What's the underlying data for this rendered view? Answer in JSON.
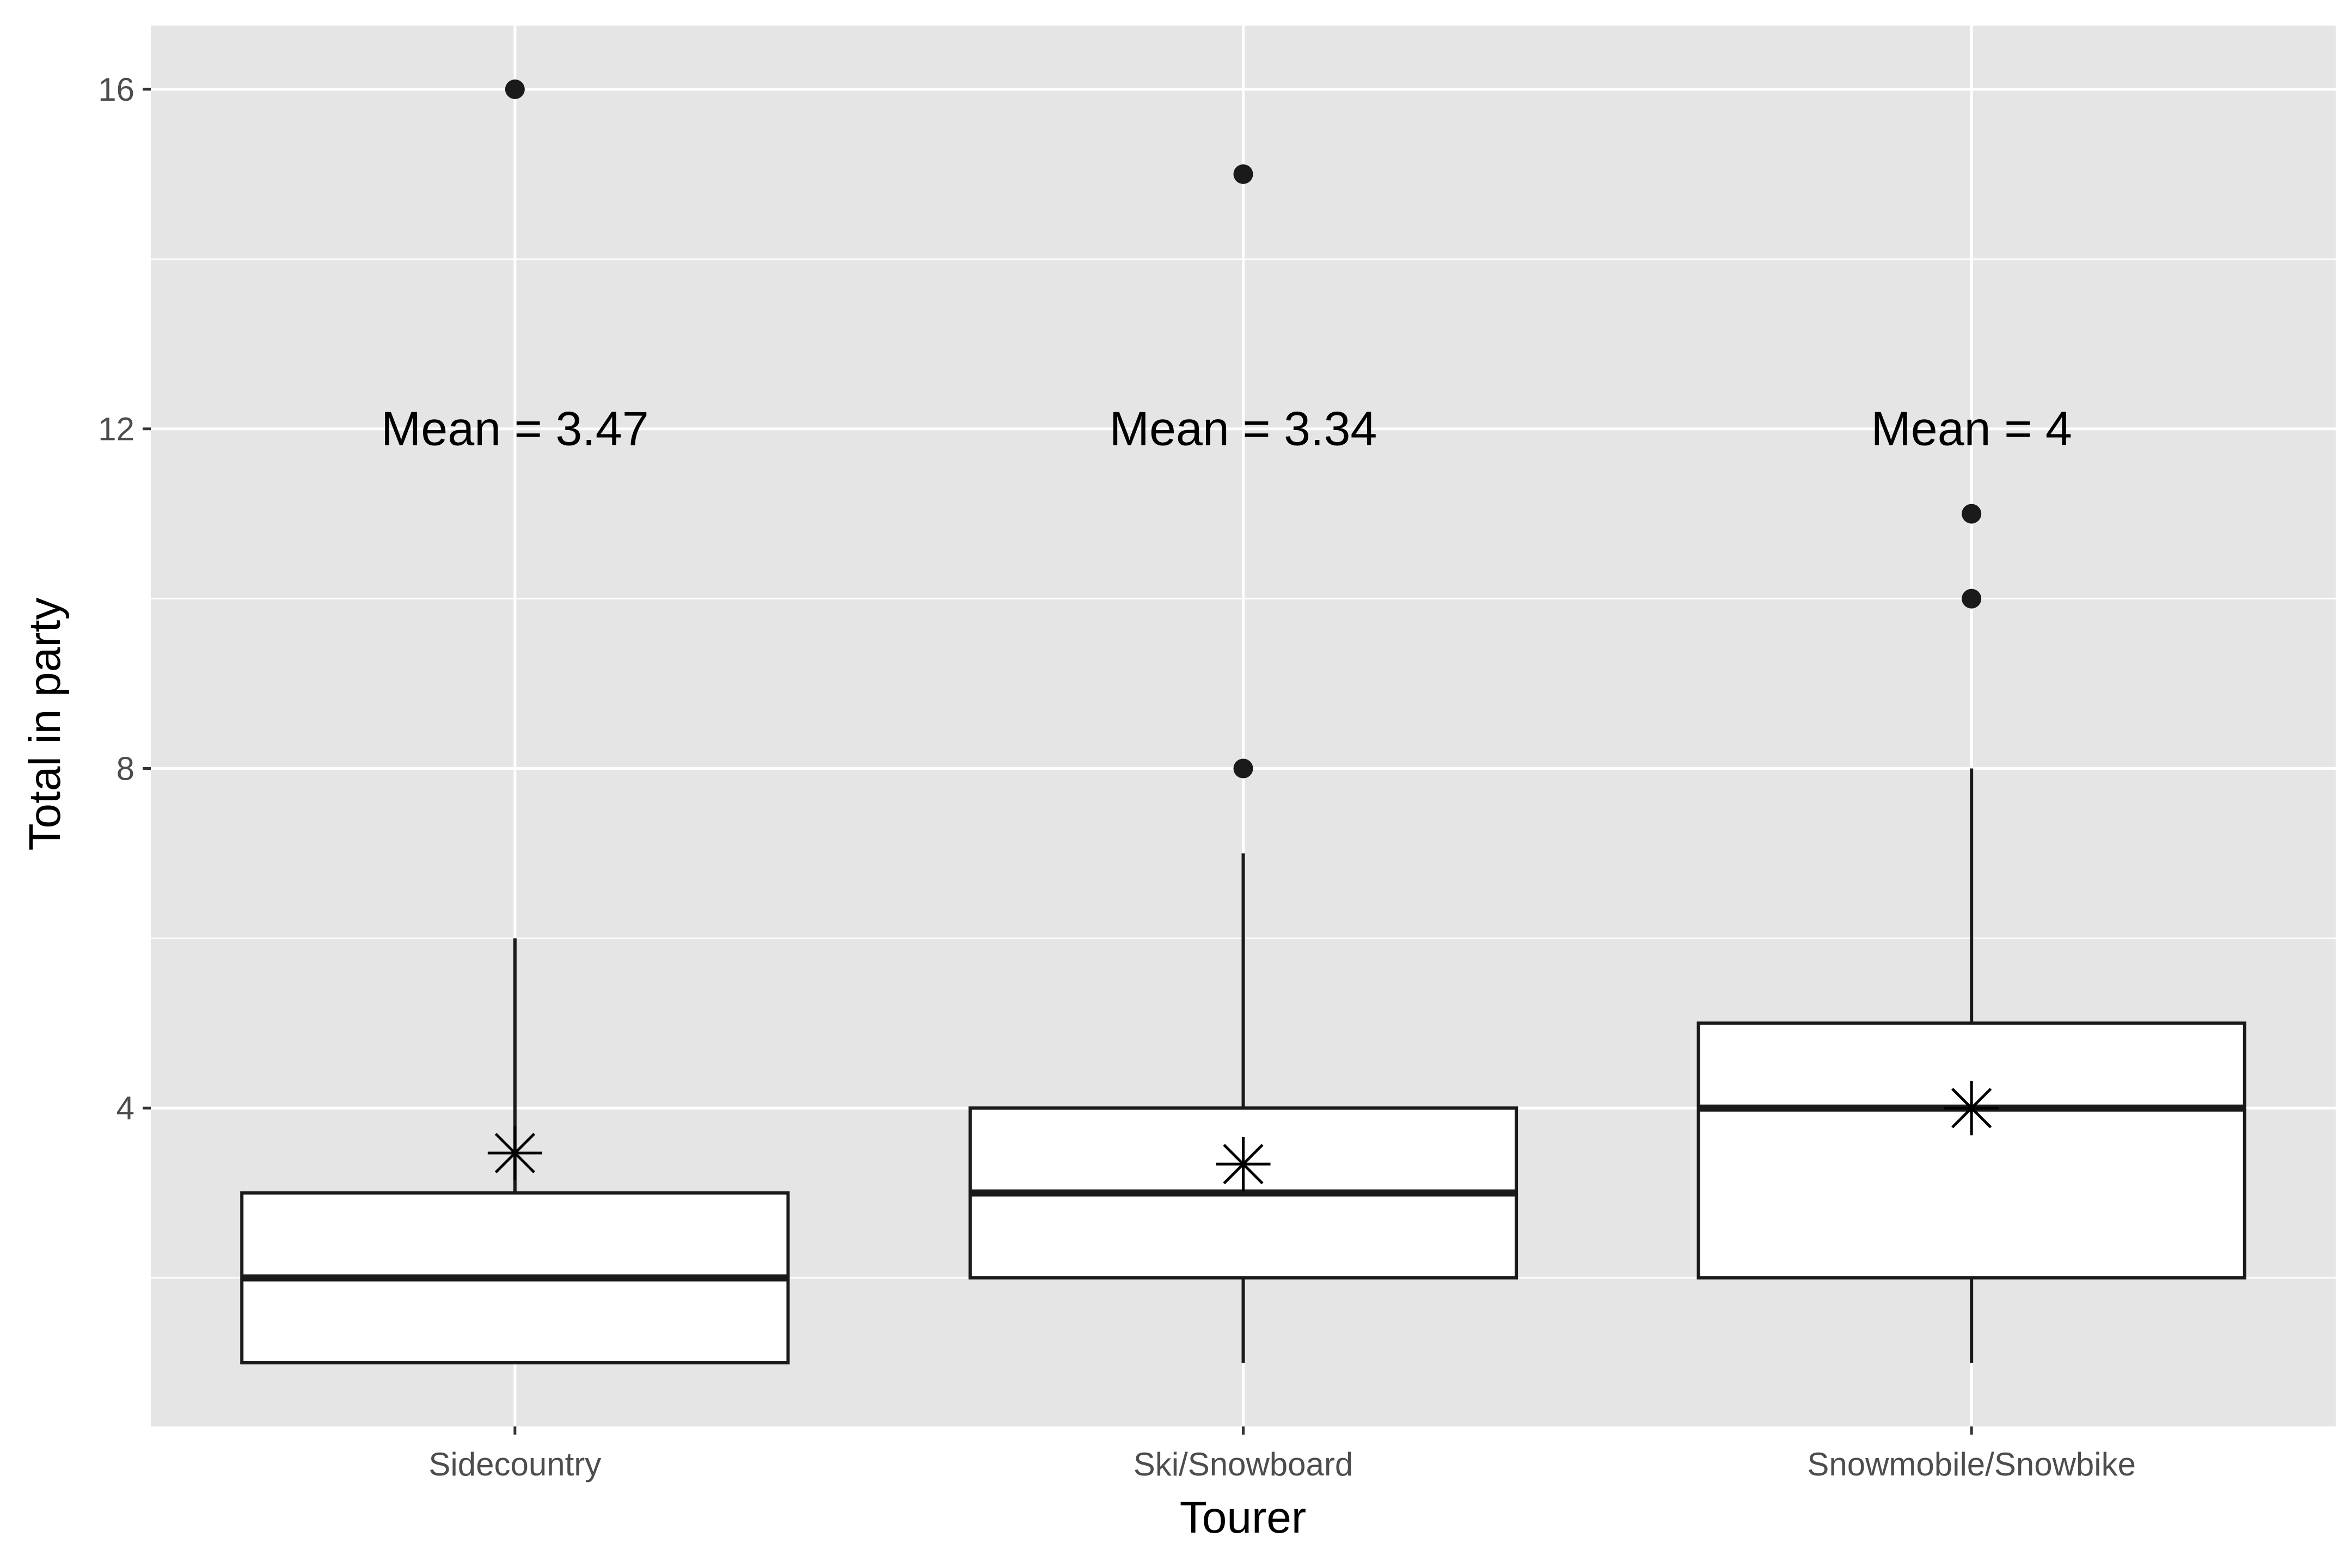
{
  "chart_data": {
    "type": "boxplot",
    "title": "",
    "xlabel": "Tourer",
    "ylabel": "Total in party",
    "ylim": [
      0.25,
      16.75
    ],
    "y_ticks": [
      4,
      8,
      12,
      16
    ],
    "y_minor_ticks": [
      2,
      6,
      10,
      14
    ],
    "grid": true,
    "panel_color": "#e5e5e5",
    "grid_color": "#ffffff",
    "box_color": "#1a1a1a",
    "categories": [
      "Sidecountry",
      "Ski/Snowboard",
      "Snowmobile/Snowbike"
    ],
    "boxes": [
      {
        "category": "Sidecountry",
        "whisker_low": 1,
        "q1": 1,
        "median": 2,
        "q3": 3,
        "whisker_high": 6,
        "outliers": [
          16
        ],
        "mean": 3.47,
        "mean_label": "Mean = 3.47"
      },
      {
        "category": "Ski/Snowboard",
        "whisker_low": 1,
        "q1": 2,
        "median": 3,
        "q3": 4,
        "whisker_high": 7,
        "outliers": [
          8,
          15
        ],
        "mean": 3.34,
        "mean_label": "Mean = 3.34"
      },
      {
        "category": "Snowmobile/Snowbike",
        "whisker_low": 1,
        "q1": 2,
        "median": 4,
        "q3": 5,
        "whisker_high": 8,
        "outliers": [
          10,
          11
        ],
        "mean": 4,
        "mean_label": "Mean = 4"
      }
    ],
    "mean_label_y": 12
  }
}
